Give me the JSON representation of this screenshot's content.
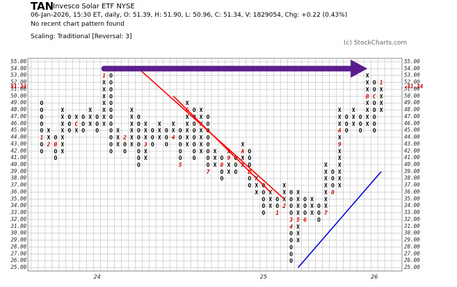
{
  "header": {
    "symbol": "TAN",
    "name": "Invesco Solar ETF  NYSE",
    "info": "06-Jan-2026, 15:30 ET, daily, O: 51.39, H: 51.90, L: 50.96, C: 51.34, V: 1829054, Chg: +0.22 (0.43%)",
    "pattern": "No recent chart pattern found",
    "scaling": "Scaling: Traditional [Reversal: 3]",
    "credit": "(c) StockCharts.com"
  },
  "colors": {
    "x": "#000000",
    "o": "#000000",
    "month": "#cc0000",
    "price_tag": "#cc0000",
    "grid": "#bdbdbd",
    "downtrend": "#ff0000",
    "uptrend": "#0000dd",
    "arrow": "#5a1e8c"
  },
  "chart_data": {
    "type": "point-and-figure",
    "box_size": 1,
    "reversal": 3,
    "ylim": [
      25,
      55
    ],
    "y_ticks": [
      "25.00",
      "26.00",
      "27.00",
      "28.00",
      "29.00",
      "30.00",
      "31.00",
      "32.00",
      "33.00",
      "34.00",
      "35.00",
      "36.00",
      "37.00",
      "38.00",
      "39.00",
      "40.00",
      "41.00",
      "42.00",
      "43.00",
      "44.00",
      "45.00",
      "46.00",
      "47.00",
      "48.00",
      "49.00",
      "50.00",
      "51.00",
      "52.00",
      "53.00",
      "54.00",
      "55.00"
    ],
    "last_price": "51.34",
    "x_labels": [
      {
        "label": "24",
        "col": 8
      },
      {
        "label": "25",
        "col": 32
      },
      {
        "label": "26",
        "col": 48
      }
    ],
    "columns": [
      {
        "t": "O",
        "hi": 49,
        "lo": 42,
        "m": {
          "44": "1"
        }
      },
      {
        "t": "X",
        "hi": 45,
        "lo": 43,
        "m": {
          "43": "2"
        }
      },
      {
        "t": "O",
        "hi": 44,
        "lo": 41,
        "m": {
          "43": "B"
        }
      },
      {
        "t": "X",
        "hi": 48,
        "lo": 42,
        "m": {}
      },
      {
        "t": "O",
        "hi": 47,
        "lo": 45,
        "m": {}
      },
      {
        "t": "X",
        "hi": 47,
        "lo": 45,
        "m": {
          "46": "C"
        }
      },
      {
        "t": "O",
        "hi": 47,
        "lo": 45,
        "m": {}
      },
      {
        "t": "X",
        "hi": 48,
        "lo": 46,
        "m": {}
      },
      {
        "t": "O",
        "hi": 47,
        "lo": 45,
        "m": {}
      },
      {
        "t": "X",
        "hi": 54,
        "lo": 46,
        "m": {
          "53": "1"
        }
      },
      {
        "t": "O",
        "hi": 53,
        "lo": 42,
        "m": {}
      },
      {
        "t": "X",
        "hi": 45,
        "lo": 43,
        "m": {}
      },
      {
        "t": "O",
        "hi": 44,
        "lo": 42,
        "m": {
          "44": "2"
        }
      },
      {
        "t": "X",
        "hi": 48,
        "lo": 43,
        "m": {}
      },
      {
        "t": "O",
        "hi": 47,
        "lo": 40,
        "m": {}
      },
      {
        "t": "X",
        "hi": 46,
        "lo": 41,
        "m": {
          "43": "3"
        }
      },
      {
        "t": "O",
        "hi": 45,
        "lo": 43,
        "m": {}
      },
      {
        "t": "X",
        "hi": 46,
        "lo": 44,
        "m": {}
      },
      {
        "t": "O",
        "hi": 45,
        "lo": 43,
        "m": {}
      },
      {
        "t": "X",
        "hi": 46,
        "lo": 44,
        "m": {
          "44": "4"
        }
      },
      {
        "t": "O",
        "hi": 45,
        "lo": 40,
        "m": {
          "40": "5"
        }
      },
      {
        "t": "X",
        "hi": 49,
        "lo": 43,
        "m": {
          "48": "6"
        }
      },
      {
        "t": "O",
        "hi": 48,
        "lo": 41,
        "m": {}
      },
      {
        "t": "X",
        "hi": 48,
        "lo": 42,
        "m": {}
      },
      {
        "t": "O",
        "hi": 47,
        "lo": 39,
        "m": {
          "39": "7"
        }
      },
      {
        "t": "X",
        "hi": 42,
        "lo": 40,
        "m": {}
      },
      {
        "t": "O",
        "hi": 41,
        "lo": 38,
        "m": {
          "40": "8"
        }
      },
      {
        "t": "X",
        "hi": 42,
        "lo": 39,
        "m": {
          "41": "9"
        }
      },
      {
        "t": "O",
        "hi": 41,
        "lo": 39,
        "m": {}
      },
      {
        "t": "X",
        "hi": 43,
        "lo": 40,
        "m": {
          "42": "A"
        }
      },
      {
        "t": "O",
        "hi": 42,
        "lo": 37,
        "m": {
          "39": "B"
        }
      },
      {
        "t": "X",
        "hi": 38,
        "lo": 36,
        "m": {}
      },
      {
        "t": "O",
        "hi": 37,
        "lo": 33,
        "m": {}
      },
      {
        "t": "X",
        "hi": 36,
        "lo": 34,
        "m": {}
      },
      {
        "t": "O",
        "hi": 35,
        "lo": 33,
        "m": {
          "33": "1"
        }
      },
      {
        "t": "X",
        "hi": 37,
        "lo": 34,
        "m": {
          "34": "2"
        }
      },
      {
        "t": "O",
        "hi": 36,
        "lo": 26,
        "m": {
          "32": "3",
          "31": "4"
        }
      },
      {
        "t": "X",
        "hi": 36,
        "lo": 29,
        "m": {
          "32": "5"
        }
      },
      {
        "t": "O",
        "hi": 35,
        "lo": 32,
        "m": {
          "32": "6"
        }
      },
      {
        "t": "X",
        "hi": 35,
        "lo": 33,
        "m": {}
      },
      {
        "t": "O",
        "hi": 34,
        "lo": 32,
        "m": {}
      },
      {
        "t": "X",
        "hi": 40,
        "lo": 33,
        "m": {
          "33": "7"
        }
      },
      {
        "t": "O",
        "hi": 39,
        "lo": 36,
        "m": {
          "36": "8"
        }
      },
      {
        "t": "X",
        "hi": 48,
        "lo": 37,
        "m": {
          "45": "A",
          "43": "9"
        }
      },
      {
        "t": "O",
        "hi": 47,
        "lo": 45,
        "m": {}
      },
      {
        "t": "X",
        "hi": 48,
        "lo": 46,
        "m": {}
      },
      {
        "t": "O",
        "hi": 47,
        "lo": 45,
        "m": {}
      },
      {
        "t": "X",
        "hi": 53,
        "lo": 46,
        "m": {
          "50": "B"
        }
      },
      {
        "t": "O",
        "hi": 52,
        "lo": 45,
        "m": {
          "50": "C"
        }
      },
      {
        "t": "X",
        "hi": 52,
        "lo": 48,
        "m": {
          "52": "1"
        }
      }
    ],
    "trendlines": [
      {
        "name": "downtrend",
        "from": {
          "col": 14,
          "price": 54
        },
        "to": {
          "col": 35,
          "price": 35
        }
      },
      {
        "name": "downtrend-2",
        "from": {
          "col": 19,
          "price": 50
        },
        "to": {
          "col": 33,
          "price": 36
        }
      },
      {
        "name": "uptrend",
        "from": {
          "col": 37,
          "price": 25
        },
        "to": {
          "col": 49,
          "price": 39
        }
      }
    ],
    "arrow": {
      "from": {
        "col": 9,
        "price": 54
      },
      "to": {
        "col": 47,
        "price": 54
      }
    },
    "grid": true
  }
}
